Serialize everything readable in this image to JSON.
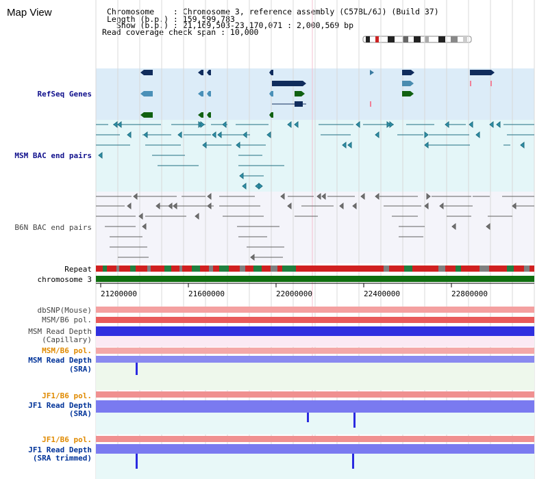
{
  "header": {
    "title": "Map View",
    "info_lines": [
      "Chromosome    : Chromosome 3, reference assembly (C57BL/6J) (Build 37)",
      "Length (b.p.) : 159,599,783",
      "  Show (b.p.) : 21,169,503-23,170,071 : 2,000,569 bp",
      "Read coverage check span : 10,000"
    ]
  },
  "tracks": {
    "refseq": "RefSeq Genes",
    "msm_bac": "MSM BAC end pairs",
    "b6n_bac": "B6N BAC end pairs",
    "repeat": "Repeat",
    "chromosome": "chromosome 3",
    "dbsnp": "dbSNP(Mouse)",
    "msm_b6_pol_1": "MSM/B6 pol.",
    "msm_depth_cap_1": "MSM Read Depth",
    "msm_depth_cap_2": "(Capillary)",
    "msm_b6_pol_2": "MSM/B6 pol.",
    "msm_depth_sra_1": "MSM Read Depth",
    "msm_depth_sra_2": "(SRA)",
    "jf1_b6_pol_1": "JF1/B6 pol.",
    "jf1_depth_sra_1": "JF1 Read Depth",
    "jf1_depth_sra_2": "(SRA)",
    "jf1_b6_pol_2": "JF1/B6 pol.",
    "jf1_depth_trim_1": "JF1 Read Depth",
    "jf1_depth_trim_2": "(SRA trimmed)"
  },
  "axis": {
    "ticks": [
      "21200000",
      "21600000",
      "22000000",
      "22400000",
      "22800000"
    ]
  },
  "colors": {
    "refseq_bg": "#dcecf8",
    "msm_bg": "#e4f6f8",
    "b6n_bg": "#f4f4fa",
    "chromosome": "#0f6e0f",
    "depth_blue": "#2a2ae0",
    "depth_light": "#8a8af0",
    "pol_red": "#e03030"
  }
}
